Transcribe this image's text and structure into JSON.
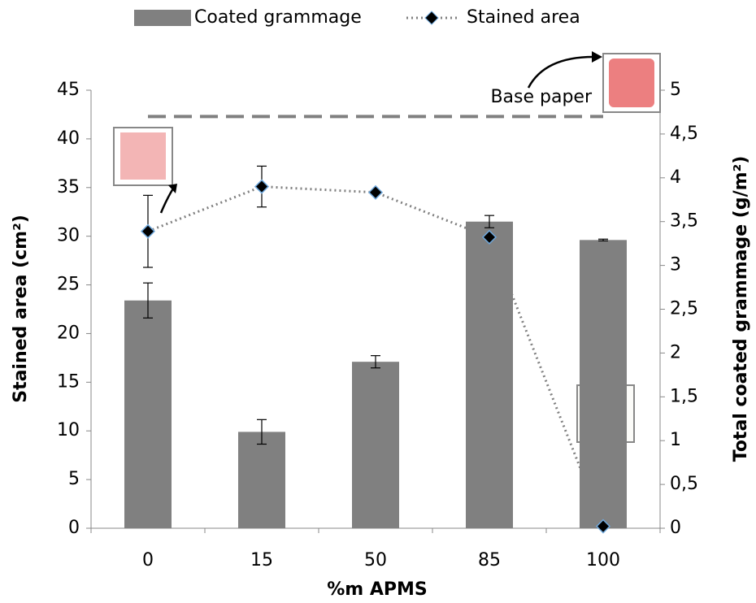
{
  "chart_data": {
    "type": "bar-line",
    "categories": [
      "0",
      "15",
      "50",
      "85",
      "100"
    ],
    "x_label": "%m APMS",
    "y_label": "Stained area (cm²)",
    "y2_label": "Total coated grammage (g/m²)",
    "ylim": [
      0,
      45
    ],
    "yticks": [
      0,
      5,
      10,
      15,
      20,
      25,
      30,
      35,
      40,
      45
    ],
    "y2lim": [
      0,
      5
    ],
    "y2ticks": [
      0,
      {
        "value": 0.5,
        "label": "0,5"
      },
      1,
      {
        "value": 1.5,
        "label": "1,5"
      },
      2,
      {
        "value": 2.5,
        "label": "2,5"
      },
      3,
      {
        "value": 3.5,
        "label": "3,5"
      },
      4,
      {
        "value": 4.5,
        "label": "4,5"
      },
      5
    ],
    "series": [
      {
        "name": "Coated grammage",
        "type": "bar",
        "axis": "y2",
        "color": "#808080",
        "values": [
          2.6,
          1.1,
          1.9,
          3.5,
          3.29
        ],
        "errors": [
          0.2,
          0.14,
          0.07,
          0.07,
          0.01
        ]
      },
      {
        "name": "Stained area",
        "type": "line",
        "color": "#808080",
        "values": [
          30.5,
          35.1,
          34.5,
          29.9,
          0.2
        ],
        "errors": [
          3.7,
          2.1,
          null,
          null,
          null
        ]
      }
    ],
    "reference_line": {
      "label": "Base paper",
      "value": 42.3
    }
  }
}
